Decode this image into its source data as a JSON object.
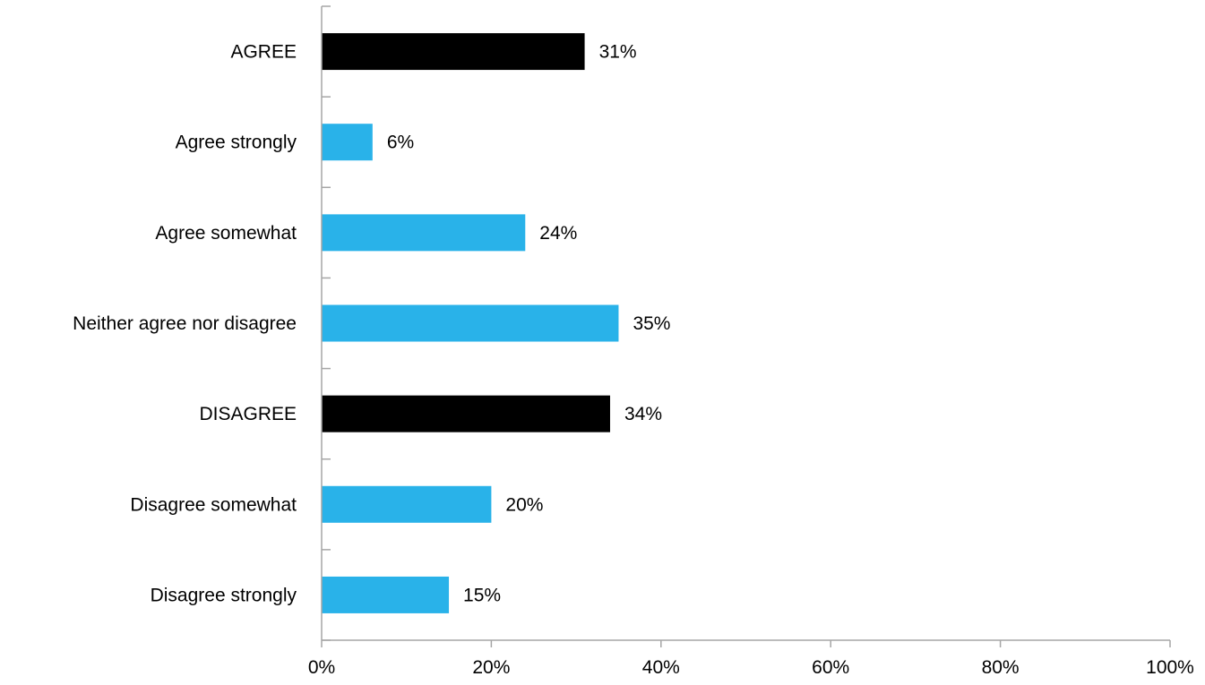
{
  "chart_data": {
    "type": "bar",
    "orientation": "horizontal",
    "categories": [
      "AGREE",
      "Agree strongly",
      "Agree somewhat",
      "Neither agree nor disagree",
      "DISAGREE",
      "Disagree somewhat",
      "Disagree strongly"
    ],
    "values": [
      31,
      6,
      24,
      35,
      34,
      20,
      15
    ],
    "value_labels": [
      "31%",
      "6%",
      "24%",
      "35%",
      "34%",
      "20%",
      "15%"
    ],
    "bar_colors": [
      "#000000",
      "#29b2e9",
      "#29b2e9",
      "#29b2e9",
      "#000000",
      "#29b2e9",
      "#29b2e9"
    ],
    "xlim": [
      0,
      100
    ],
    "x_ticks": [
      0,
      20,
      40,
      60,
      80,
      100
    ],
    "x_tick_labels": [
      "0%",
      "20%",
      "40%",
      "60%",
      "80%",
      "100%"
    ],
    "title": "",
    "xlabel": "",
    "ylabel": "",
    "grid": false,
    "legend": "none"
  }
}
